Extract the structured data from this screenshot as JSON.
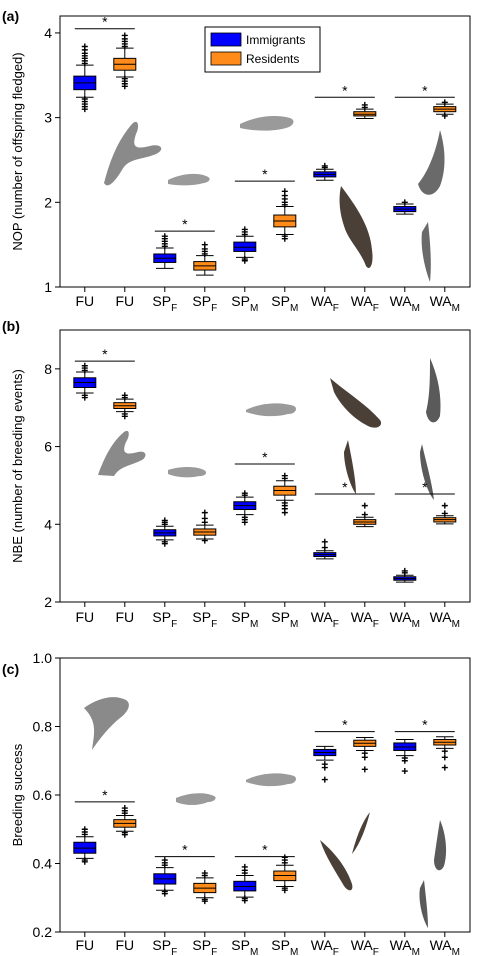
{
  "legend": {
    "immigrants": "Immigrants",
    "residents": "Residents",
    "immigrants_color": "#0000ff",
    "residents_color": "#ff8c1a"
  },
  "categories": [
    {
      "base": "FU",
      "sub": ""
    },
    {
      "base": "FU",
      "sub": ""
    },
    {
      "base": "SP",
      "sub": "F"
    },
    {
      "base": "SP",
      "sub": "F"
    },
    {
      "base": "SP",
      "sub": "M"
    },
    {
      "base": "SP",
      "sub": "M"
    },
    {
      "base": "WA",
      "sub": "F"
    },
    {
      "base": "WA",
      "sub": "F"
    },
    {
      "base": "WA",
      "sub": "M"
    },
    {
      "base": "WA",
      "sub": "M"
    }
  ],
  "chart_data": [
    {
      "type": "box",
      "panel_label": "(a)",
      "ylabel": "NOP (number of offspring fledged)",
      "ylim": [
        1,
        4.2
      ],
      "yticks": [
        1,
        2,
        3,
        4
      ],
      "yticklabels": [
        "1",
        "2",
        "3",
        "4"
      ],
      "legend_position": "top-center",
      "boxes": [
        {
          "group": "Immigrants",
          "q1": 3.33,
          "median": 3.41,
          "q3": 3.49,
          "whislo": 3.24,
          "whishi": 3.62,
          "fliers": [
            3.64,
            3.67,
            3.7,
            3.73,
            3.76,
            3.8,
            3.84,
            3.22,
            3.19,
            3.16,
            3.13,
            3.1
          ]
        },
        {
          "group": "Residents",
          "q1": 3.56,
          "median": 3.63,
          "q3": 3.7,
          "whislo": 3.48,
          "whishi": 3.82,
          "fliers": [
            3.84,
            3.87,
            3.9,
            3.93,
            3.97,
            3.46,
            3.43,
            3.4,
            3.37
          ]
        },
        {
          "group": "Immigrants",
          "q1": 1.29,
          "median": 1.34,
          "q3": 1.39,
          "whislo": 1.22,
          "whishi": 1.46,
          "fliers": [
            1.48,
            1.51,
            1.54,
            1.57,
            1.6
          ]
        },
        {
          "group": "Residents",
          "q1": 1.2,
          "median": 1.25,
          "q3": 1.3,
          "whislo": 1.14,
          "whishi": 1.37,
          "fliers": [
            1.39,
            1.42,
            1.45,
            1.5
          ]
        },
        {
          "group": "Immigrants",
          "q1": 1.42,
          "median": 1.47,
          "q3": 1.53,
          "whislo": 1.35,
          "whishi": 1.6,
          "fliers": [
            1.62,
            1.65,
            1.68,
            1.33,
            1.31
          ]
        },
        {
          "group": "Residents",
          "q1": 1.71,
          "median": 1.78,
          "q3": 1.85,
          "whislo": 1.62,
          "whishi": 1.95,
          "fliers": [
            1.97,
            2.0,
            2.04,
            2.08,
            2.13,
            1.6,
            1.57
          ]
        },
        {
          "group": "Immigrants",
          "q1": 2.3,
          "median": 2.33,
          "q3": 2.36,
          "whislo": 2.26,
          "whishi": 2.39,
          "fliers": [
            2.41,
            2.43
          ]
        },
        {
          "group": "Residents",
          "q1": 3.02,
          "median": 3.04,
          "q3": 3.07,
          "whislo": 2.99,
          "whishi": 3.1,
          "fliers": [
            3.12,
            3.15
          ]
        },
        {
          "group": "Immigrants",
          "q1": 1.89,
          "median": 1.92,
          "q3": 1.95,
          "whislo": 1.86,
          "whishi": 1.98,
          "fliers": [
            2.0
          ]
        },
        {
          "group": "Residents",
          "q1": 3.07,
          "median": 3.1,
          "q3": 3.13,
          "whislo": 3.04,
          "whishi": 3.16,
          "fliers": [
            3.18,
            3.02
          ]
        }
      ],
      "significance": [
        {
          "from": 0,
          "to": 1,
          "y": 4.05,
          "label": "*"
        },
        {
          "from": 2,
          "to": 3,
          "y": 1.66,
          "label": "*"
        },
        {
          "from": 4,
          "to": 5,
          "y": 2.25,
          "label": "*"
        },
        {
          "from": 6,
          "to": 7,
          "y": 3.24,
          "label": "*"
        },
        {
          "from": 8,
          "to": 9,
          "y": 3.24,
          "label": "*"
        }
      ]
    },
    {
      "type": "box",
      "panel_label": "(b)",
      "ylabel": "NBE (number of breeding events)",
      "ylim": [
        2,
        9
      ],
      "yticks": [
        2,
        4,
        6,
        8
      ],
      "yticklabels": [
        "2",
        "4",
        "6",
        "8"
      ],
      "boxes": [
        {
          "group": "Immigrants",
          "q1": 7.52,
          "median": 7.65,
          "q3": 7.77,
          "whislo": 7.38,
          "whishi": 7.92,
          "fliers": [
            7.96,
            8.02,
            8.08,
            7.32,
            7.26
          ]
        },
        {
          "group": "Residents",
          "q1": 6.98,
          "median": 7.05,
          "q3": 7.13,
          "whislo": 6.9,
          "whishi": 7.22,
          "fliers": [
            7.26,
            7.32,
            6.84,
            6.78
          ]
        },
        {
          "group": "Immigrants",
          "q1": 3.7,
          "median": 3.78,
          "q3": 3.86,
          "whislo": 3.6,
          "whishi": 3.95,
          "fliers": [
            4.0,
            4.05,
            4.1,
            3.55,
            3.5
          ]
        },
        {
          "group": "Residents",
          "q1": 3.72,
          "median": 3.8,
          "q3": 3.88,
          "whislo": 3.62,
          "whishi": 3.98,
          "fliers": [
            4.05,
            4.15,
            4.3,
            3.58
          ]
        },
        {
          "group": "Immigrants",
          "q1": 4.38,
          "median": 4.48,
          "q3": 4.58,
          "whislo": 4.25,
          "whishi": 4.7,
          "fliers": [
            4.75,
            4.8,
            4.18,
            4.12,
            4.05
          ]
        },
        {
          "group": "Residents",
          "q1": 4.75,
          "median": 4.87,
          "q3": 4.98,
          "whislo": 4.62,
          "whishi": 5.12,
          "fliers": [
            5.18,
            5.25,
            4.55,
            4.48,
            4.4,
            4.3
          ]
        },
        {
          "group": "Immigrants",
          "q1": 3.17,
          "median": 3.22,
          "q3": 3.27,
          "whislo": 3.11,
          "whishi": 3.32,
          "fliers": [
            3.4,
            3.55
          ]
        },
        {
          "group": "Residents",
          "q1": 4.0,
          "median": 4.06,
          "q3": 4.12,
          "whislo": 3.94,
          "whishi": 4.18,
          "fliers": [
            4.25,
            4.48
          ]
        },
        {
          "group": "Immigrants",
          "q1": 2.56,
          "median": 2.6,
          "q3": 2.65,
          "whislo": 2.51,
          "whishi": 2.69,
          "fliers": [
            2.75,
            2.8
          ]
        },
        {
          "group": "Residents",
          "q1": 4.06,
          "median": 4.12,
          "q3": 4.17,
          "whislo": 4.01,
          "whishi": 4.22,
          "fliers": [
            4.28,
            4.48
          ]
        }
      ],
      "significance": [
        {
          "from": 0,
          "to": 1,
          "y": 8.2,
          "label": "*"
        },
        {
          "from": 4,
          "to": 5,
          "y": 5.55,
          "label": "*"
        },
        {
          "from": 6,
          "to": 7,
          "y": 4.78,
          "label": "*"
        },
        {
          "from": 8,
          "to": 9,
          "y": 4.78,
          "label": "*"
        }
      ]
    },
    {
      "type": "box",
      "panel_label": "(c)",
      "ylabel": "Breeding success",
      "ylim": [
        0.2,
        1.0
      ],
      "yticks": [
        0.2,
        0.4,
        0.6,
        0.8,
        1.0
      ],
      "yticklabels": [
        "0.2",
        "0.4",
        "0.6",
        "0.8",
        "1.0"
      ],
      "boxes": [
        {
          "group": "Immigrants",
          "q1": 0.43,
          "median": 0.445,
          "q3": 0.462,
          "whislo": 0.415,
          "whishi": 0.478,
          "fliers": [
            0.485,
            0.492,
            0.5,
            0.41,
            0.405
          ]
        },
        {
          "group": "Residents",
          "q1": 0.506,
          "median": 0.517,
          "q3": 0.528,
          "whislo": 0.494,
          "whishi": 0.54,
          "fliers": [
            0.547,
            0.554,
            0.562,
            0.49,
            0.484
          ]
        },
        {
          "group": "Immigrants",
          "q1": 0.34,
          "median": 0.355,
          "q3": 0.37,
          "whislo": 0.322,
          "whishi": 0.388,
          "fliers": [
            0.395,
            0.402,
            0.41,
            0.318,
            0.312
          ]
        },
        {
          "group": "Residents",
          "q1": 0.315,
          "median": 0.328,
          "q3": 0.342,
          "whislo": 0.3,
          "whishi": 0.358,
          "fliers": [
            0.365,
            0.372,
            0.295,
            0.29
          ]
        },
        {
          "group": "Immigrants",
          "q1": 0.32,
          "median": 0.333,
          "q3": 0.348,
          "whislo": 0.302,
          "whishi": 0.365,
          "fliers": [
            0.372,
            0.38,
            0.39,
            0.298,
            0.292
          ]
        },
        {
          "group": "Residents",
          "q1": 0.35,
          "median": 0.365,
          "q3": 0.378,
          "whislo": 0.333,
          "whishi": 0.395,
          "fliers": [
            0.402,
            0.41,
            0.418,
            0.328,
            0.322
          ]
        },
        {
          "group": "Immigrants",
          "q1": 0.715,
          "median": 0.724,
          "q3": 0.733,
          "whislo": 0.702,
          "whishi": 0.742,
          "fliers": [
            0.69,
            0.68,
            0.645
          ]
        },
        {
          "group": "Residents",
          "q1": 0.742,
          "median": 0.751,
          "q3": 0.76,
          "whislo": 0.73,
          "whishi": 0.768,
          "fliers": [
            0.722,
            0.71,
            0.675
          ]
        },
        {
          "group": "Immigrants",
          "q1": 0.73,
          "median": 0.74,
          "q3": 0.752,
          "whislo": 0.715,
          "whishi": 0.762,
          "fliers": [
            0.708,
            0.7,
            0.67
          ]
        },
        {
          "group": "Residents",
          "q1": 0.746,
          "median": 0.754,
          "q3": 0.762,
          "whislo": 0.736,
          "whishi": 0.77,
          "fliers": [
            0.728,
            0.71,
            0.68
          ]
        }
      ],
      "significance": [
        {
          "from": 0,
          "to": 1,
          "y": 0.58,
          "label": "*"
        },
        {
          "from": 2,
          "to": 3,
          "y": 0.42,
          "label": "*"
        },
        {
          "from": 4,
          "to": 5,
          "y": 0.42,
          "label": "*"
        },
        {
          "from": 6,
          "to": 7,
          "y": 0.785,
          "label": "*"
        },
        {
          "from": 8,
          "to": 9,
          "y": 0.785,
          "label": "*"
        }
      ]
    }
  ]
}
